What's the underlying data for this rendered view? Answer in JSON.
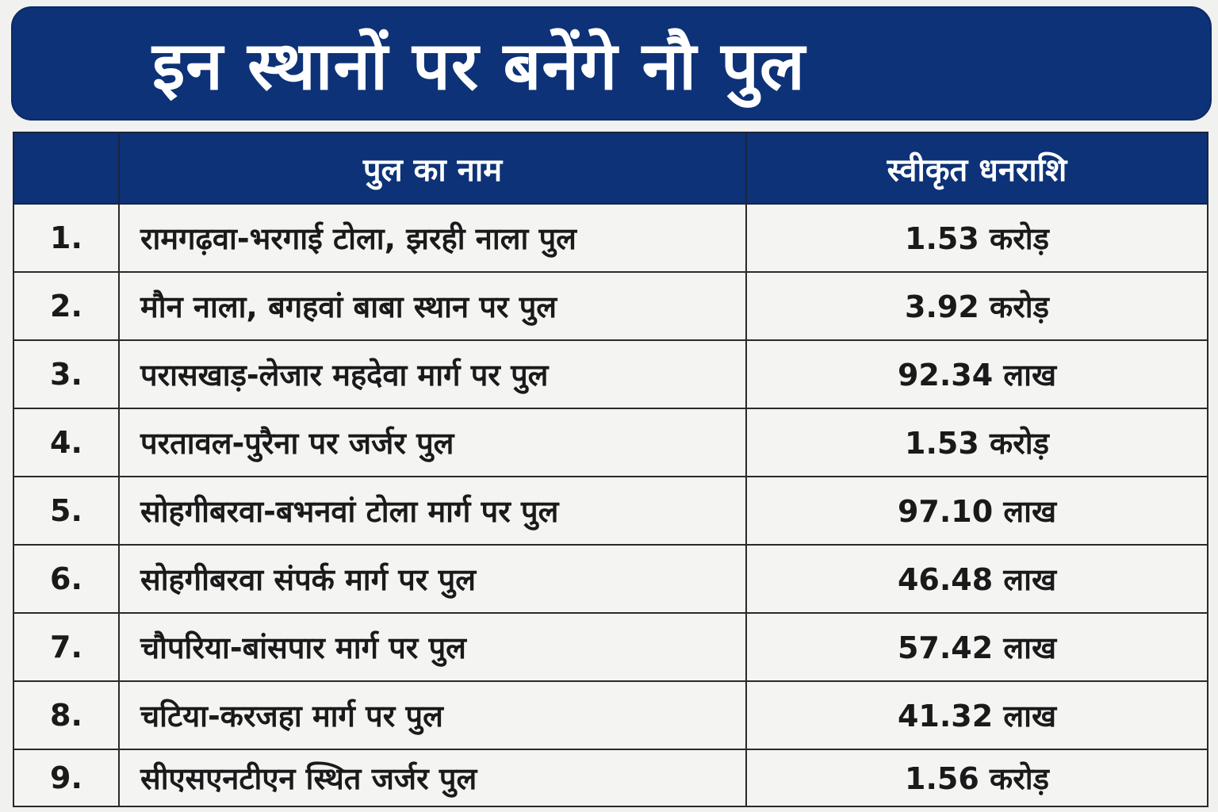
{
  "title": "इन स्थानों पर बनेंगे नौ पुल",
  "table": {
    "headers": {
      "serial": "",
      "name": "पुल का नाम",
      "amount": "स्वीकृत धनराशि"
    },
    "rows": [
      {
        "no": "1.",
        "name": "रामगढ़वा-भरगाई टोला, झरही नाला पुल",
        "amount": "1.53 करोड़"
      },
      {
        "no": "2.",
        "name": "मौन नाला, बगहवां बाबा स्थान पर पुल",
        "amount": "3.92 करोड़"
      },
      {
        "no": "3.",
        "name": "परासखाड़-लेजार महदेवा मार्ग पर पुल",
        "amount": "92.34 लाख"
      },
      {
        "no": "4.",
        "name": "परतावल-पुरैना पर जर्जर पुल",
        "amount": "1.53 करोड़"
      },
      {
        "no": "5.",
        "name": "सोहगीबरवा-बभनवां टोला मार्ग पर पुल",
        "amount": "97.10 लाख"
      },
      {
        "no": "6.",
        "name": "सोहगीबरवा संपर्क मार्ग पर पुल",
        "amount": "46.48 लाख"
      },
      {
        "no": "7.",
        "name": "चौपरिया-बांसपार मार्ग पर पुल",
        "amount": "57.42 लाख"
      },
      {
        "no": "8.",
        "name": "चटिया-करजहा मार्ग पर पुल",
        "amount": "41.32 लाख"
      },
      {
        "no": "9.",
        "name": "सीएसएनटीएन स्थित जर्जर पुल",
        "amount": "1.56 करोड़"
      }
    ]
  },
  "colors": {
    "banner": "#0d3277",
    "header": "#0d3277",
    "background": "#f1f1ef",
    "text": "#1a1a1a"
  }
}
